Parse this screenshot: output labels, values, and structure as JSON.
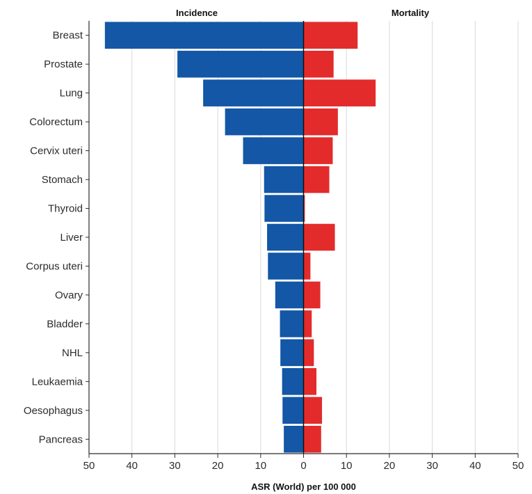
{
  "chart_data": {
    "type": "bar",
    "orientation": "horizontal-butterfly",
    "categories": [
      "Breast",
      "Prostate",
      "Lung",
      "Colorectum",
      "Cervix uteri",
      "Stomach",
      "Thyroid",
      "Liver",
      "Corpus uteri",
      "Ovary",
      "Bladder",
      "NHL",
      "Leukaemia",
      "Oesophagus",
      "Pancreas"
    ],
    "series": [
      {
        "name": "Incidence",
        "side": "left",
        "color": "#1357a6",
        "values": [
          46.3,
          29.4,
          23.4,
          18.3,
          14.1,
          9.2,
          9.1,
          8.5,
          8.3,
          6.6,
          5.5,
          5.4,
          5.0,
          4.9,
          4.6
        ]
      },
      {
        "name": "Mortality",
        "side": "right",
        "color": "#e32b2b",
        "values": [
          12.6,
          7.0,
          16.8,
          8.0,
          6.8,
          6.0,
          0.3,
          7.3,
          1.6,
          3.9,
          1.9,
          2.4,
          3.0,
          4.3,
          4.1
        ]
      }
    ],
    "xticks": [
      "50",
      "40",
      "30",
      "20",
      "10",
      "0",
      "10",
      "20",
      "30",
      "40",
      "50"
    ],
    "xlim": [
      -50,
      50
    ],
    "xlabel": "ASR (World) per 100 000",
    "grid": "vertical"
  }
}
